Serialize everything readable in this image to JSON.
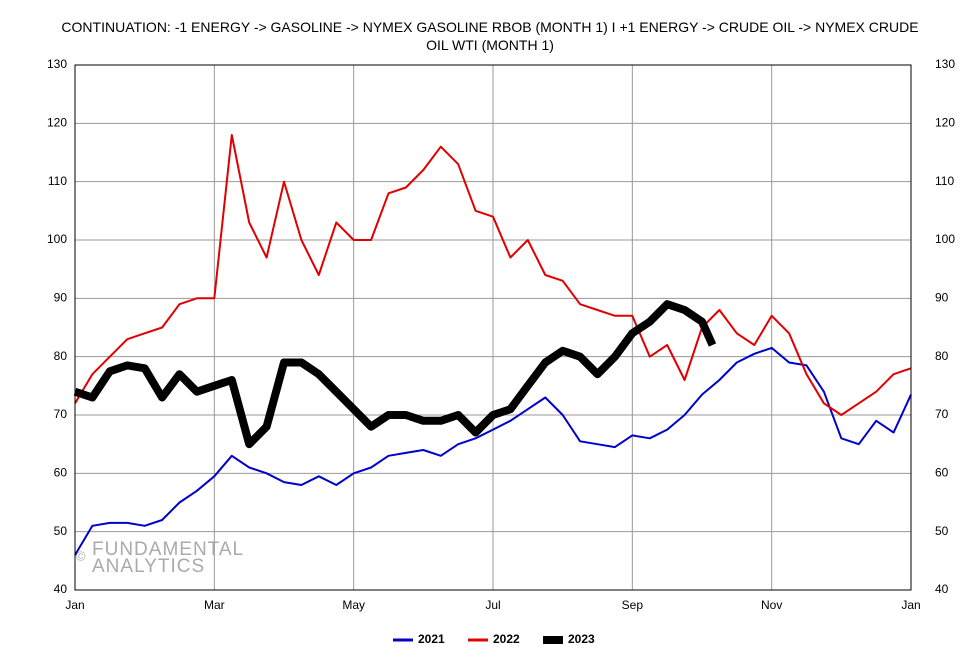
{
  "chart_data": {
    "type": "line",
    "title": "CONTINUATION: -1 ENERGY -> GASOLINE -> NYMEX GASOLINE RBOB (MONTH 1) I +1 ENERGY -> CRUDE OIL -> NYMEX CRUDE OIL WTI (MONTH 1)",
    "watermark_symbol": "©",
    "watermark": [
      "FUNDAMENTAL",
      "ANALYTICS"
    ],
    "xlim": [
      0,
      12
    ],
    "xticks": [
      {
        "value": 0,
        "label": "Jan"
      },
      {
        "value": 2,
        "label": "Mar"
      },
      {
        "value": 4,
        "label": "May"
      },
      {
        "value": 6,
        "label": "Jul"
      },
      {
        "value": 8,
        "label": "Sep"
      },
      {
        "value": 10,
        "label": "Nov"
      },
      {
        "value": 12,
        "label": "Jan"
      }
    ],
    "ylim": [
      40,
      130
    ],
    "yticks": [
      40,
      50,
      60,
      70,
      80,
      90,
      100,
      110,
      120,
      130
    ],
    "grid": true,
    "legend": "bottom",
    "series": [
      {
        "name": "2021",
        "color": "#0000cc",
        "x": [
          0,
          0.25,
          0.5,
          0.75,
          1,
          1.25,
          1.5,
          1.75,
          2,
          2.25,
          2.5,
          2.75,
          3,
          3.25,
          3.5,
          3.75,
          4,
          4.25,
          4.5,
          4.75,
          5,
          5.25,
          5.5,
          5.75,
          6,
          6.25,
          6.5,
          6.75,
          7,
          7.25,
          7.5,
          7.75,
          8,
          8.25,
          8.5,
          8.75,
          9,
          9.25,
          9.5,
          9.75,
          10,
          10.25,
          10.5,
          10.75,
          11,
          11.25,
          11.5,
          11.75,
          12
        ],
        "values": [
          46,
          51,
          51.5,
          51.5,
          51,
          52,
          55,
          57,
          59.5,
          63,
          61,
          60,
          58.5,
          58,
          59.5,
          58,
          60,
          61,
          63,
          63.5,
          64,
          63,
          65,
          66,
          67.5,
          69,
          71,
          73,
          70,
          65.5,
          65,
          64.5,
          66.5,
          66,
          67.5,
          70,
          73.5,
          76,
          79,
          80.5,
          81.5,
          79,
          78.5,
          74,
          66,
          65,
          69,
          67,
          73.5
        ]
      },
      {
        "name": "2022",
        "color": "#e00000",
        "x": [
          0,
          0.25,
          0.5,
          0.75,
          1,
          1.25,
          1.5,
          1.75,
          2,
          2.25,
          2.5,
          2.75,
          3,
          3.25,
          3.5,
          3.75,
          4,
          4.25,
          4.5,
          4.75,
          5,
          5.25,
          5.5,
          5.75,
          6,
          6.25,
          6.5,
          6.75,
          7,
          7.25,
          7.5,
          7.75,
          8,
          8.25,
          8.5,
          8.75,
          9,
          9.25,
          9.5,
          9.75,
          10,
          10.25,
          10.5,
          10.75,
          11,
          11.25,
          11.5,
          11.75,
          12
        ],
        "values": [
          72,
          77,
          80,
          83,
          84,
          85,
          89,
          90,
          90,
          118,
          103,
          97,
          110,
          100,
          94,
          103,
          100,
          100,
          108,
          109,
          112,
          116,
          113,
          105,
          104,
          97,
          100,
          94,
          93,
          89,
          88,
          87,
          87,
          80,
          82,
          76,
          85,
          88,
          84,
          82,
          87,
          84,
          77,
          72,
          70,
          72,
          74,
          77,
          78
        ]
      },
      {
        "name": "2023",
        "color": "#000000",
        "x": [
          0,
          0.25,
          0.5,
          0.75,
          1,
          1.25,
          1.5,
          1.75,
          2,
          2.25,
          2.5,
          2.75,
          3,
          3.25,
          3.5,
          3.75,
          4,
          4.25,
          4.5,
          4.75,
          5,
          5.25,
          5.5,
          5.75,
          6,
          6.25,
          6.5,
          6.75,
          7,
          7.25,
          7.5,
          7.75,
          8,
          8.25,
          8.5,
          8.75,
          9,
          9.15
        ],
        "values": [
          74,
          73,
          77.5,
          78.5,
          78,
          73,
          77,
          74,
          75,
          76,
          65,
          68,
          79,
          79,
          77,
          74,
          71,
          68,
          70,
          70,
          69,
          69,
          70,
          67,
          70,
          71,
          75,
          79,
          81,
          80,
          77,
          80,
          84,
          86,
          89,
          88,
          86,
          82
        ]
      }
    ]
  }
}
